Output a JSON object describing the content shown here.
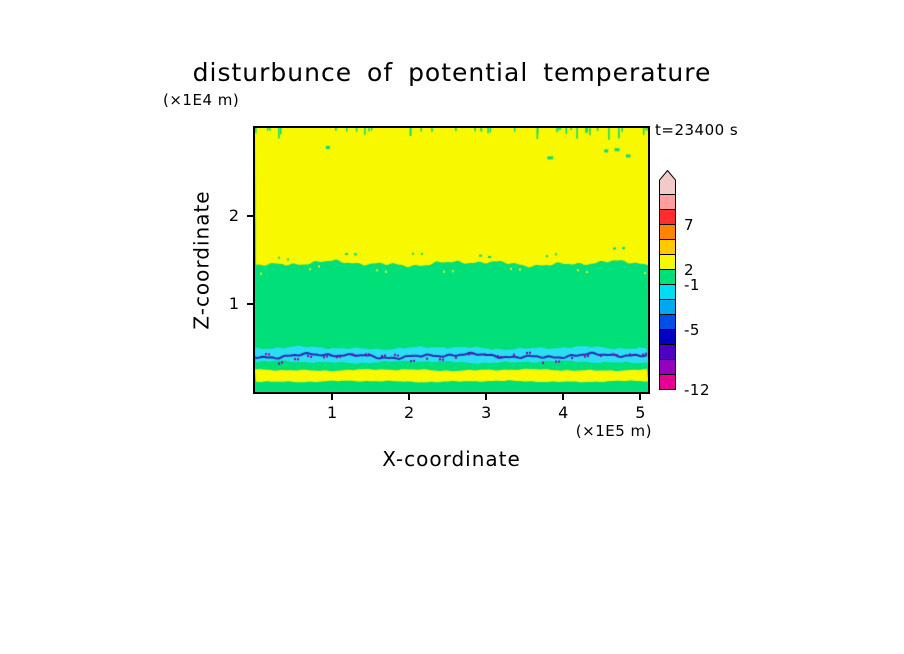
{
  "colors": {
    "background": "#ffffff",
    "plot_border": "#000000",
    "axis_text": "#000000"
  },
  "chart_data": {
    "type": "heatmap",
    "title": "disturbunce of potential temperature",
    "time_label": "t=23400 s",
    "xlabel": "X-coordinate",
    "ylabel": "Z-coordinate",
    "x_unit_label": "(×1E5 m)",
    "y_unit_label": "(×1E4 m)",
    "xlim": [
      0,
      5.1
    ],
    "ylim": [
      0,
      3.0
    ],
    "x_ticks": [
      1,
      2,
      3,
      4,
      5
    ],
    "y_ticks": [
      1,
      2
    ],
    "grid": false,
    "legend_position": "right-colorbar",
    "speck_color": "#8c00b4",
    "field_bands": [
      {
        "name": "upper-yellow",
        "z_top": 3.0,
        "z_bottom": 1.46,
        "color": "#f8f800",
        "approx_value_range": [
          2,
          7
        ],
        "note": "wavy lower boundary, small green specks hanging from top edge"
      },
      {
        "name": "middle-green",
        "z_top": 1.46,
        "z_bottom": 0.5,
        "color": "#00df78",
        "approx_value_range": [
          -1,
          2
        ]
      },
      {
        "name": "cyan-layer",
        "z_top": 0.5,
        "z_bottom": 0.34,
        "color": "#2bdef2",
        "approx_value_range": [
          -5,
          -1
        ]
      },
      {
        "name": "navy-line",
        "z": 0.41,
        "thickness_z": 0.03,
        "color": "#2828b4",
        "approx_value_range": [
          -12,
          -5
        ],
        "note": "thin wavy dark line with purple specks inside cyan layer"
      },
      {
        "name": "lower-green",
        "z_top": 0.34,
        "z_bottom": 0.25,
        "color": "#00df78",
        "approx_value_range": [
          -1,
          2
        ]
      },
      {
        "name": "bottom-yellow",
        "z_top": 0.25,
        "z_bottom": 0.12,
        "color": "#f8f800",
        "approx_value_range": [
          2,
          7
        ]
      },
      {
        "name": "bottom-green",
        "z_top": 0.12,
        "z_bottom": 0.0,
        "color": "#00df78",
        "approx_value_range": [
          -1,
          2
        ]
      }
    ],
    "colorbar": {
      "arrow_color": "#f2caca",
      "segment_colors_top_to_bottom": [
        "#ff9e9e",
        "#ff2e2e",
        "#ff8400",
        "#ffc800",
        "#f8f800",
        "#00df78",
        "#00dcf2",
        "#00a8f0",
        "#0050e8",
        "#0000c0",
        "#5000c0",
        "#9600bc",
        "#e60094"
      ],
      "labels": [
        {
          "text": "7",
          "level": 7,
          "boundary_index": 2
        },
        {
          "text": "2",
          "level": 2,
          "boundary_index": 5
        },
        {
          "text": "-1",
          "level": -1,
          "boundary_index": 6
        },
        {
          "text": "-5",
          "level": -5,
          "boundary_index": 9
        },
        {
          "text": "-12",
          "level": -12,
          "boundary_index": 13
        }
      ]
    }
  }
}
